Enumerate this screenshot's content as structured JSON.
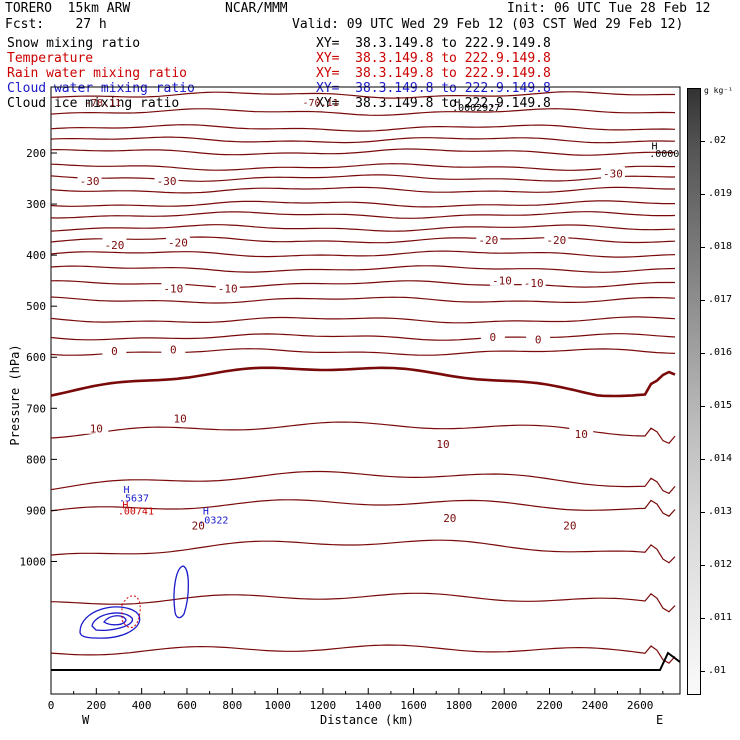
{
  "header": {
    "model": "TORERO  15km ARW",
    "center": "NCAR/MMM",
    "init": "Init: 06 UTC Tue 28 Feb 12",
    "fcst": "Fcst:    27 h",
    "valid": "Valid: 09 UTC Wed 29 Feb 12 (03 CST Wed 29 Feb 12)"
  },
  "legend": [
    {
      "name": "Snow mixing ratio",
      "xy": "XY=  38.3.149.8 to 222.9.149.8",
      "color": "#000000"
    },
    {
      "name": "Temperature",
      "xy": "XY=  38.3.149.8 to 222.9.149.8",
      "color": "#cc0000"
    },
    {
      "name": "Rain water mixing ratio",
      "xy": "XY=  38.3.149.8 to 222.9.149.8",
      "color": "#cc0000"
    },
    {
      "name": "Cloud water mixing ratio",
      "xy": "XY=  38.3.149.8 to 222.9.149.8",
      "color": "#0000cc"
    },
    {
      "name": "Cloud ice mixing ratio",
      "xy": "XY=  38.3.149.8 to 222.9.149.8",
      "color": "#000000"
    }
  ],
  "colors": {
    "temperature": "#7a0a0a",
    "cloud_water": "#1a1acc",
    "ground": "#000000",
    "rain": "#cc0000"
  },
  "colorbar": {
    "unit": "g kg⁻¹",
    "ticks": [
      ".02",
      ".019",
      ".018",
      ".017",
      ".016",
      ".015",
      ".014",
      ".013",
      ".012",
      ".011",
      ".01"
    ]
  },
  "chart_data": {
    "type": "contour",
    "xlabel": "Distance (km)",
    "ylabel": "Pressure (hPa)",
    "x_ticks": [
      "0",
      "200",
      "400",
      "600",
      "800",
      "1000",
      "1200",
      "1400",
      "1600",
      "1800",
      "2000",
      "2200",
      "2400",
      "2600"
    ],
    "y_ticks": [
      "200",
      "300",
      "400",
      "500",
      "600",
      "700",
      "800",
      "900",
      "1000"
    ],
    "xlim": [
      0,
      2780
    ],
    "ylim": [
      1050,
      100
    ],
    "x_ends": {
      "left": "W",
      "right": "E"
    },
    "temperature_labels": [
      {
        "text": "-30",
        "x": 170,
        "p": 255
      },
      {
        "text": "-30",
        "x": 510,
        "p": 255
      },
      {
        "text": "-30",
        "x": 2480,
        "p": 240
      },
      {
        "text": "-20",
        "x": 280,
        "p": 380
      },
      {
        "text": "-20",
        "x": 560,
        "p": 375
      },
      {
        "text": "-20",
        "x": 1930,
        "p": 370
      },
      {
        "text": "-20",
        "x": 2230,
        "p": 370
      },
      {
        "text": "-10",
        "x": 540,
        "p": 465
      },
      {
        "text": "-10",
        "x": 780,
        "p": 465
      },
      {
        "text": "-10",
        "x": 1990,
        "p": 450
      },
      {
        "text": "-10",
        "x": 2130,
        "p": 455
      },
      {
        "text": "0",
        "x": 280,
        "p": 588
      },
      {
        "text": "0",
        "x": 540,
        "p": 585
      },
      {
        "text": "0",
        "x": 1950,
        "p": 560
      },
      {
        "text": "0",
        "x": 2150,
        "p": 565
      },
      {
        "text": "10",
        "x": 200,
        "p": 740
      },
      {
        "text": "10",
        "x": 570,
        "p": 720
      },
      {
        "text": "10",
        "x": 1730,
        "p": 770
      },
      {
        "text": "10",
        "x": 2340,
        "p": 750
      },
      {
        "text": "20",
        "x": 1760,
        "p": 915
      },
      {
        "text": "20",
        "x": 2290,
        "p": 930
      },
      {
        "text": "20",
        "x": 650,
        "p": 930
      }
    ],
    "extrema_labels": [
      {
        "text": "H",
        "x": 2650,
        "p": 185,
        "color": "#000000"
      },
      {
        "text": ".0000",
        "x": 2640,
        "p": 200,
        "color": "#000000"
      },
      {
        "text": "H",
        "x": 1780,
        "p": 100,
        "color": "#000000"
      },
      {
        "text": ".0002927",
        "x": 1770,
        "p": 110,
        "color": "#000000"
      },
      {
        "text": "-78.11",
        "x": 150,
        "p": 100,
        "color": "#7a0a0a"
      },
      {
        "text": "-70.11",
        "x": 1110,
        "p": 100,
        "color": "#7a0a0a"
      },
      {
        "text": "H",
        "x": 320,
        "p": 858,
        "color": "#1a1acc"
      },
      {
        "text": ".5637",
        "x": 300,
        "p": 875,
        "color": "#1a1acc"
      },
      {
        "text": "H",
        "x": 315,
        "p": 888,
        "color": "#cc0000"
      },
      {
        "text": ".00741",
        "x": 295,
        "p": 900,
        "color": "#cc0000"
      },
      {
        "text": "H",
        "x": 670,
        "p": 900,
        "color": "#1a1acc"
      },
      {
        "text": ".0322",
        "x": 650,
        "p": 918,
        "color": "#1a1acc"
      }
    ]
  }
}
